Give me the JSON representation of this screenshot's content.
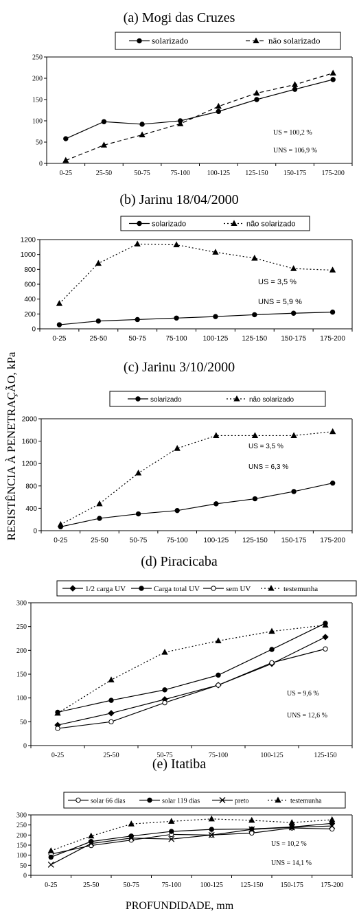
{
  "figure": {
    "ylabel": "RESISTÊNCIA À PENETRAÇÃO, kPa",
    "xlabel": "PROFUNDIDADE, mm"
  },
  "chart_data": [
    {
      "type": "line",
      "title": "(a) Mogi das Cruzes",
      "categories": [
        "0-25",
        "25-50",
        "50-75",
        "75-100",
        "100-125",
        "125-150",
        "150-175",
        "175-200"
      ],
      "ylim": [
        0,
        250
      ],
      "yticks": [
        0,
        50,
        100,
        150,
        200,
        250
      ],
      "legend_position": "top",
      "series": [
        {
          "name": "solarizado",
          "marker": "dot",
          "dash": "solid",
          "values": [
            58,
            98,
            92,
            100,
            122,
            150,
            174,
            197
          ]
        },
        {
          "name": "não solarizado",
          "marker": "triangle",
          "dash": "dashed",
          "values": [
            7,
            43,
            67,
            93,
            134,
            165,
            185,
            212
          ]
        }
      ],
      "annotations": [
        "US   = 100,2 %",
        "UNS = 106,9 %"
      ]
    },
    {
      "type": "line",
      "title": "(b) Jarinu 18/04/2000",
      "categories": [
        "0-25",
        "25-50",
        "50-75",
        "75-100",
        "100-125",
        "125-150",
        "150-175",
        "175-200"
      ],
      "ylim": [
        0,
        1200
      ],
      "yticks": [
        0,
        200,
        400,
        600,
        800,
        1000,
        1200
      ],
      "legend_position": "top",
      "series": [
        {
          "name": "solarizado",
          "marker": "dot",
          "dash": "solid",
          "values": [
            55,
            105,
            125,
            145,
            165,
            190,
            210,
            225
          ]
        },
        {
          "name": "não solarizado",
          "marker": "triangle",
          "dash": "dotted",
          "values": [
            340,
            880,
            1140,
            1130,
            1030,
            950,
            810,
            790
          ]
        }
      ],
      "annotations": [
        "US  =  3,5 %",
        "UNS = 5,9 %"
      ]
    },
    {
      "type": "line",
      "title": "(c) Jarinu   3/10/2000",
      "categories": [
        "0-25",
        "25-50",
        "50-75",
        "75-100",
        "100-125",
        "125-150",
        "150-175",
        "175-200"
      ],
      "ylim": [
        0,
        2000
      ],
      "yticks": [
        0,
        400,
        800,
        1200,
        1600,
        2000
      ],
      "legend_position": "top",
      "series": [
        {
          "name": "solarizado",
          "marker": "dot",
          "dash": "solid",
          "values": [
            70,
            220,
            300,
            360,
            480,
            570,
            700,
            850
          ]
        },
        {
          "name": "não solarizado",
          "marker": "triangle",
          "dash": "dotted",
          "values": [
            110,
            480,
            1030,
            1470,
            1700,
            1700,
            1700,
            1770
          ]
        }
      ],
      "annotations": [
        "US  = 3,5 %",
        "UNS = 6,3 %"
      ]
    },
    {
      "type": "line",
      "title": "(d) Piracicaba",
      "categories": [
        "0-25",
        "25-50",
        "50-75",
        "75-100",
        "100-125",
        "125-150"
      ],
      "ylim": [
        0,
        300
      ],
      "yticks": [
        0,
        50,
        100,
        150,
        200,
        250,
        300
      ],
      "legend_position": "top",
      "series": [
        {
          "name": "1/2 carga UV",
          "marker": "diamond",
          "dash": "solid",
          "values": [
            43,
            68,
            97,
            127,
            172,
            228
          ]
        },
        {
          "name": "Carga total UV",
          "marker": "dot",
          "dash": "solid",
          "values": [
            70,
            95,
            117,
            148,
            202,
            257
          ]
        },
        {
          "name": "sem UV",
          "marker": "circle",
          "dash": "solid",
          "values": [
            36,
            50,
            90,
            127,
            174,
            203
          ]
        },
        {
          "name": "testemunha",
          "marker": "triangle",
          "dash": "dotted",
          "values": [
            68,
            138,
            196,
            220,
            240,
            253
          ]
        }
      ],
      "annotations": [
        "US = 9,6 %",
        "UNS = 12,6 %"
      ]
    },
    {
      "type": "line",
      "title": "(e) Itatiba",
      "categories": [
        "0-25",
        "25-50",
        "50-75",
        "75-100",
        "100-125",
        "125-150",
        "150-175",
        "175-200"
      ],
      "ylim": [
        0,
        300
      ],
      "yticks": [
        0,
        50,
        100,
        150,
        200,
        250,
        300
      ],
      "legend_position": "top",
      "series": [
        {
          "name": "solar 66 dias",
          "marker": "circle",
          "dash": "solid",
          "values": [
            105,
            148,
            175,
            203,
            200,
            210,
            235,
            230
          ]
        },
        {
          "name": "solar 119 dias",
          "marker": "dot",
          "dash": "solid",
          "values": [
            90,
            168,
            195,
            218,
            228,
            230,
            240,
            258
          ]
        },
        {
          "name": "preto",
          "marker": "x",
          "dash": "solid",
          "values": [
            53,
            158,
            185,
            180,
            200,
            228,
            238,
            245
          ]
        },
        {
          "name": "testemunha",
          "marker": "triangle",
          "dash": "dotted",
          "values": [
            122,
            195,
            255,
            268,
            280,
            273,
            262,
            276
          ]
        }
      ],
      "annotations": [
        "US = 10,2 %",
        "UNS = 14,1 %"
      ]
    }
  ]
}
